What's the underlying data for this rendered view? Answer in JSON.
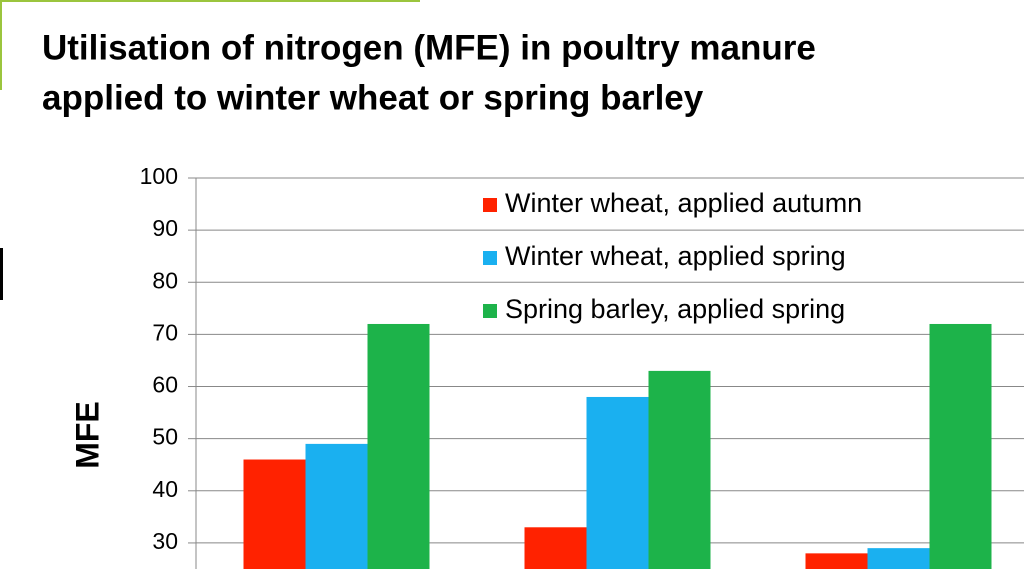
{
  "chart_data": {
    "type": "bar",
    "title": [
      "Utilisation of nitrogen (MFE) in poultry manure",
      "applied to winter wheat or spring barley"
    ],
    "y_label": "MFE",
    "categories": [
      null,
      null,
      null
    ],
    "series": [
      {
        "name": "Winter wheat, applied autumn",
        "color": "#ff2200",
        "values": [
          46,
          33,
          28
        ]
      },
      {
        "name": "Winter wheat, applied spring",
        "color": "#1ab0f0",
        "values": [
          49,
          58,
          29
        ]
      },
      {
        "name": "Spring barley, applied spring",
        "color": "#1db34a",
        "values": [
          72,
          63,
          72
        ]
      }
    ],
    "ylim": [
      25,
      100
    ],
    "yticks": [
      30,
      40,
      50,
      60,
      70,
      80,
      90,
      100
    ],
    "grid": true,
    "legend": "top-right"
  }
}
